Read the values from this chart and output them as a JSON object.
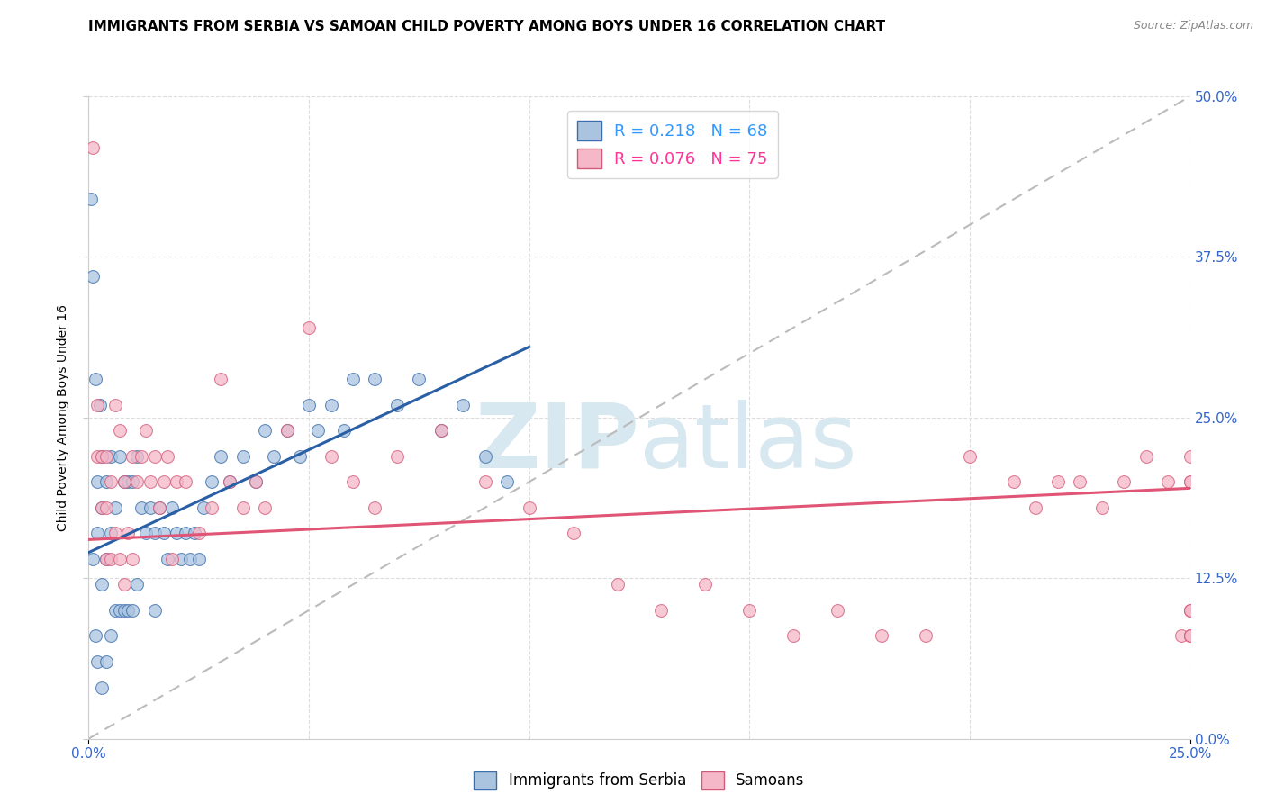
{
  "title": "IMMIGRANTS FROM SERBIA VS SAMOAN CHILD POVERTY AMONG BOYS UNDER 16 CORRELATION CHART",
  "source_text": "Source: ZipAtlas.com",
  "ylabel": "Child Poverty Among Boys Under 16",
  "xlim": [
    0.0,
    0.25
  ],
  "ylim": [
    0.0,
    0.5
  ],
  "xticks": [
    0.0,
    0.25
  ],
  "xtick_labels": [
    "0.0%",
    "25.0%"
  ],
  "yticks": [
    0.0,
    0.125,
    0.25,
    0.375,
    0.5
  ],
  "ytick_labels_right": [
    "0.0%",
    "12.5%",
    "25.0%",
    "37.5%",
    "50.0%"
  ],
  "legend_labels_bottom": [
    "Immigrants from Serbia",
    "Samoans"
  ],
  "serbia_color": "#aac4e0",
  "samoan_color": "#f4b8c8",
  "serbia_edge_color": "#3a6eab",
  "samoan_edge_color": "#d45a7a",
  "serbia_trend_color": "#2a5fa5",
  "samoan_trend_color": "#e05575",
  "diag_color": "#bbbbbb",
  "watermark_color": "#d8e8f0",
  "title_fontsize": 11,
  "axis_label_fontsize": 10,
  "tick_fontsize": 11,
  "serbia_R": 0.218,
  "serbia_N": 68,
  "samoan_R": 0.076,
  "samoan_N": 75,
  "serbia_trend_x": [
    0.0,
    0.1
  ],
  "serbia_trend_y": [
    0.145,
    0.305
  ],
  "samoan_trend_x": [
    0.0,
    0.25
  ],
  "samoan_trend_y": [
    0.155,
    0.195
  ],
  "serbia_x": [
    0.0005,
    0.001,
    0.001,
    0.0015,
    0.0015,
    0.002,
    0.002,
    0.002,
    0.0025,
    0.003,
    0.003,
    0.003,
    0.003,
    0.004,
    0.004,
    0.004,
    0.005,
    0.005,
    0.005,
    0.006,
    0.006,
    0.007,
    0.007,
    0.008,
    0.008,
    0.009,
    0.009,
    0.01,
    0.01,
    0.011,
    0.011,
    0.012,
    0.013,
    0.014,
    0.015,
    0.015,
    0.016,
    0.017,
    0.018,
    0.019,
    0.02,
    0.021,
    0.022,
    0.023,
    0.024,
    0.025,
    0.026,
    0.028,
    0.03,
    0.032,
    0.035,
    0.038,
    0.04,
    0.042,
    0.045,
    0.048,
    0.05,
    0.052,
    0.055,
    0.058,
    0.06,
    0.065,
    0.07,
    0.075,
    0.08,
    0.085,
    0.09,
    0.095
  ],
  "serbia_y": [
    0.42,
    0.36,
    0.14,
    0.28,
    0.08,
    0.2,
    0.16,
    0.06,
    0.26,
    0.22,
    0.18,
    0.12,
    0.04,
    0.2,
    0.14,
    0.06,
    0.22,
    0.16,
    0.08,
    0.18,
    0.1,
    0.22,
    0.1,
    0.2,
    0.1,
    0.2,
    0.1,
    0.2,
    0.1,
    0.22,
    0.12,
    0.18,
    0.16,
    0.18,
    0.16,
    0.1,
    0.18,
    0.16,
    0.14,
    0.18,
    0.16,
    0.14,
    0.16,
    0.14,
    0.16,
    0.14,
    0.18,
    0.2,
    0.22,
    0.2,
    0.22,
    0.2,
    0.24,
    0.22,
    0.24,
    0.22,
    0.26,
    0.24,
    0.26,
    0.24,
    0.28,
    0.28,
    0.26,
    0.28,
    0.24,
    0.26,
    0.22,
    0.2
  ],
  "samoan_x": [
    0.001,
    0.002,
    0.002,
    0.003,
    0.003,
    0.004,
    0.004,
    0.004,
    0.005,
    0.005,
    0.006,
    0.006,
    0.007,
    0.007,
    0.008,
    0.008,
    0.009,
    0.01,
    0.01,
    0.011,
    0.012,
    0.013,
    0.014,
    0.015,
    0.016,
    0.017,
    0.018,
    0.019,
    0.02,
    0.022,
    0.025,
    0.028,
    0.03,
    0.032,
    0.035,
    0.038,
    0.04,
    0.045,
    0.05,
    0.055,
    0.06,
    0.065,
    0.07,
    0.08,
    0.09,
    0.1,
    0.11,
    0.12,
    0.13,
    0.14,
    0.15,
    0.16,
    0.17,
    0.18,
    0.19,
    0.2,
    0.21,
    0.215,
    0.22,
    0.225,
    0.23,
    0.235,
    0.24,
    0.245,
    0.248,
    0.25,
    0.25,
    0.25,
    0.25,
    0.25,
    0.25,
    0.25,
    0.25,
    0.25,
    0.25
  ],
  "samoan_y": [
    0.46,
    0.26,
    0.22,
    0.22,
    0.18,
    0.22,
    0.18,
    0.14,
    0.2,
    0.14,
    0.26,
    0.16,
    0.24,
    0.14,
    0.2,
    0.12,
    0.16,
    0.22,
    0.14,
    0.2,
    0.22,
    0.24,
    0.2,
    0.22,
    0.18,
    0.2,
    0.22,
    0.14,
    0.2,
    0.2,
    0.16,
    0.18,
    0.28,
    0.2,
    0.18,
    0.2,
    0.18,
    0.24,
    0.32,
    0.22,
    0.2,
    0.18,
    0.22,
    0.24,
    0.2,
    0.18,
    0.16,
    0.12,
    0.1,
    0.12,
    0.1,
    0.08,
    0.1,
    0.08,
    0.08,
    0.22,
    0.2,
    0.18,
    0.2,
    0.2,
    0.18,
    0.2,
    0.22,
    0.2,
    0.08,
    0.2,
    0.1,
    0.22,
    0.2,
    0.1,
    0.08,
    0.08,
    0.1,
    0.08,
    0.08
  ]
}
